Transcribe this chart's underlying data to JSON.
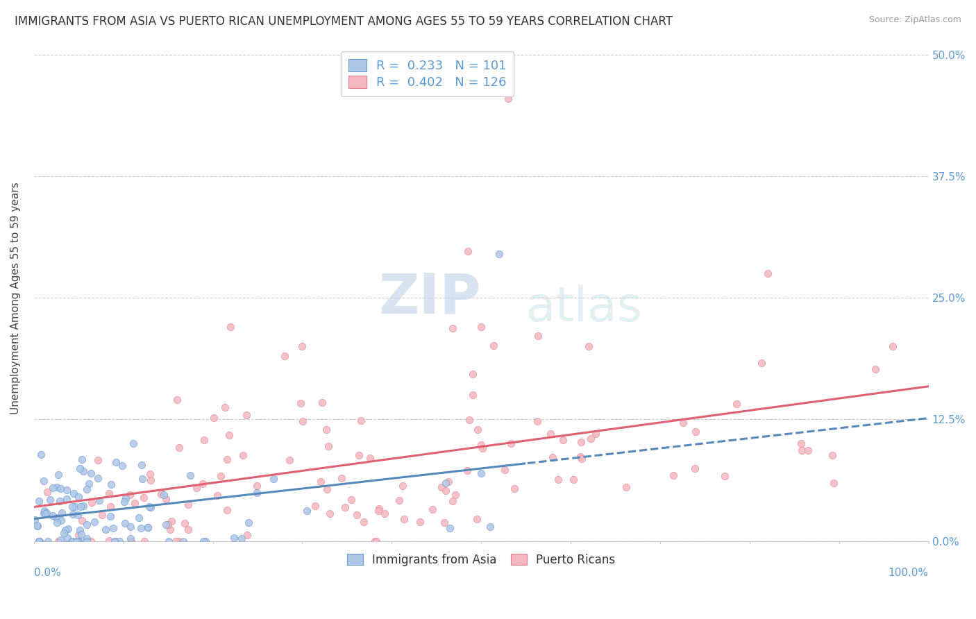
{
  "title": "IMMIGRANTS FROM ASIA VS PUERTO RICAN UNEMPLOYMENT AMONG AGES 55 TO 59 YEARS CORRELATION CHART",
  "source": "Source: ZipAtlas.com",
  "ylabel": "Unemployment Among Ages 55 to 59 years",
  "yticks_labels": [
    "0.0%",
    "12.5%",
    "25.0%",
    "37.5%",
    "50.0%"
  ],
  "ytick_vals": [
    0.0,
    0.125,
    0.25,
    0.375,
    0.5
  ],
  "legend_entries": [
    {
      "label": "R =  0.233   N = 101",
      "color": "#aec6e8",
      "edge": "#6699cc"
    },
    {
      "label": "R =  0.402   N = 126",
      "color": "#f4b8c1",
      "edge": "#e87f8a"
    }
  ],
  "bottom_legend": [
    {
      "label": "Immigrants from Asia",
      "color": "#aec6e8",
      "edge": "#6699cc"
    },
    {
      "label": "Puerto Ricans",
      "color": "#f4b8c1",
      "edge": "#e87f8a"
    }
  ],
  "asia_color": "#aec6e8",
  "asia_edge": "#6699cc",
  "asia_line": "#5588bb",
  "pr_color": "#f4b8c1",
  "pr_edge": "#e87f8a",
  "pr_line": "#e06070",
  "xlim": [
    0.0,
    1.0
  ],
  "ylim": [
    0.0,
    0.5
  ],
  "background_color": "#ffffff",
  "grid_color": "#cccccc",
  "watermark_zip": "ZIP",
  "watermark_atlas": "atlas",
  "title_fontsize": 12,
  "axis_label_fontsize": 11,
  "tick_fontsize": 11,
  "right_tick_color": "#5b9bd5",
  "xlabel_color": "#5b9bd5"
}
